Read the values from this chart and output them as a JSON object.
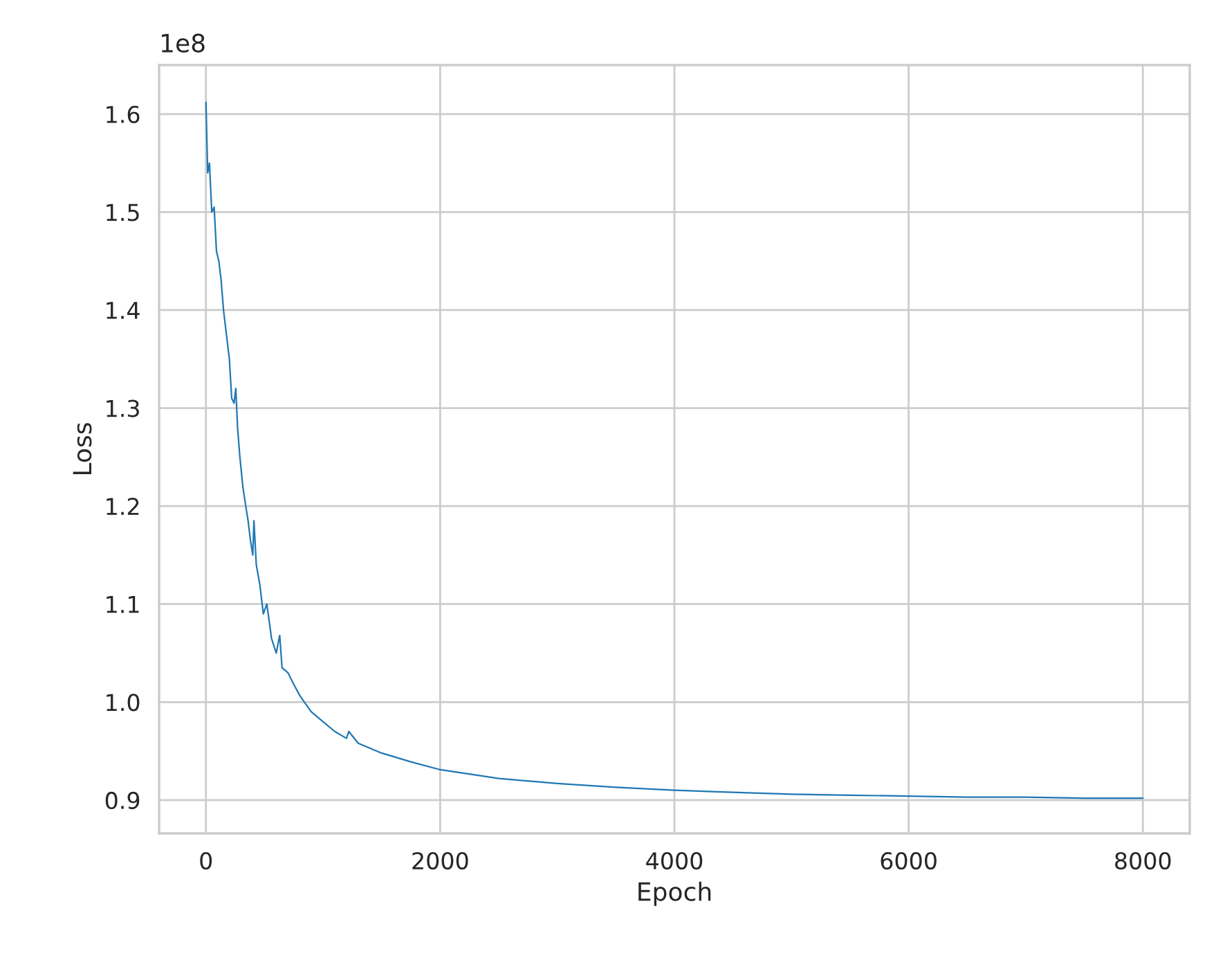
{
  "chart_data": {
    "type": "line",
    "xlabel": "Epoch",
    "ylabel": "Loss",
    "annotations": [
      "1e8"
    ],
    "x": [
      0,
      15,
      30,
      50,
      70,
      90,
      110,
      130,
      150,
      175,
      200,
      220,
      240,
      255,
      270,
      290,
      315,
      340,
      360,
      380,
      400,
      410,
      430,
      460,
      490,
      520,
      560,
      600,
      630,
      650,
      700,
      750,
      800,
      840,
      900,
      1000,
      1100,
      1200,
      1220,
      1300,
      1500,
      1750,
      2000,
      2500,
      3000,
      3500,
      4000,
      4500,
      5000,
      5500,
      6000,
      6500,
      7000,
      7500,
      8000
    ],
    "series": [
      {
        "color": "#1f77b4",
        "values": [
          1.612,
          1.54,
          1.55,
          1.5,
          1.505,
          1.46,
          1.45,
          1.43,
          1.4,
          1.375,
          1.35,
          1.31,
          1.305,
          1.32,
          1.28,
          1.25,
          1.22,
          1.2,
          1.185,
          1.165,
          1.15,
          1.185,
          1.14,
          1.12,
          1.09,
          1.1,
          1.065,
          1.05,
          1.068,
          1.035,
          1.03,
          1.018,
          1.007,
          1.0,
          0.99,
          0.98,
          0.97,
          0.963,
          0.97,
          0.958,
          0.948,
          0.939,
          0.931,
          0.922,
          0.917,
          0.913,
          0.91,
          0.908,
          0.906,
          0.905,
          0.904,
          0.903,
          0.903,
          0.902,
          0.902
        ]
      }
    ],
    "xlim": [
      -400,
      8400
    ],
    "xticks": [
      0,
      2000,
      4000,
      6000,
      8000
    ],
    "ylim": [
      0.866,
      1.65
    ],
    "yticks": [
      0.9,
      {
        "value": 1,
        "label": "1.0"
      },
      1.1,
      1.2,
      1.3,
      1.4,
      1.5,
      1.6
    ],
    "grid": true
  }
}
